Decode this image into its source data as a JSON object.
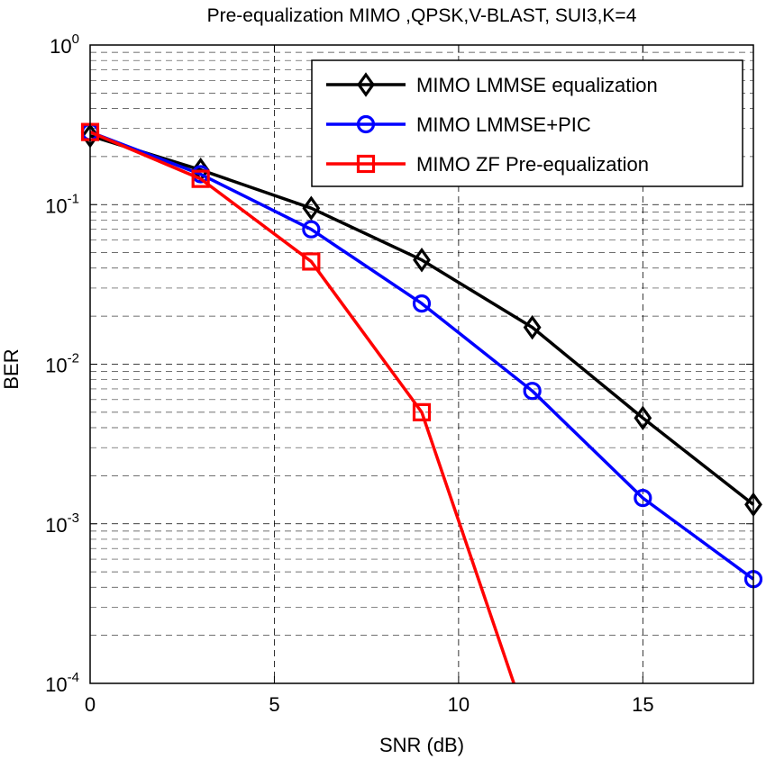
{
  "chart_data": {
    "type": "line",
    "title": "Pre-equalization MIMO ,QPSK,V-BLAST, SUI3,K=4",
    "xlabel": "SNR (dB)",
    "ylabel": "BER",
    "xlim": [
      0,
      18
    ],
    "ylim": [
      0.0001,
      1
    ],
    "yscale": "log",
    "grid": true,
    "legend_position": "top-right",
    "x_ticks": [
      0,
      5,
      10,
      15
    ],
    "y_ticks": [
      {
        "value": 1,
        "base": "10",
        "exp": "0"
      },
      {
        "value": 0.1,
        "base": "10",
        "exp": "-1"
      },
      {
        "value": 0.01,
        "base": "10",
        "exp": "-2"
      },
      {
        "value": 0.001,
        "base": "10",
        "exp": "-3"
      },
      {
        "value": 0.0001,
        "base": "10",
        "exp": "-4"
      }
    ],
    "series": [
      {
        "name": "MIMO LMMSE equalization",
        "color": "#000000",
        "marker": "diamond",
        "x": [
          0,
          3,
          6,
          9,
          12,
          15,
          18
        ],
        "y": [
          0.27,
          0.165,
          0.095,
          0.045,
          0.017,
          0.0046,
          0.00132
        ]
      },
      {
        "name": "MIMO LMMSE+PIC",
        "color": "#0000ff",
        "marker": "circle",
        "x": [
          0,
          3,
          6,
          9,
          12,
          15,
          18
        ],
        "y": [
          0.285,
          0.155,
          0.07,
          0.024,
          0.0068,
          0.00145,
          0.00045
        ]
      },
      {
        "name": "MIMO ZF Pre-equalization",
        "color": "#ff0000",
        "marker": "square",
        "x": [
          0,
          3,
          6,
          9,
          11.5
        ],
        "y": [
          0.285,
          0.145,
          0.044,
          0.005,
          0.0001
        ],
        "marker_count": 4
      }
    ]
  }
}
